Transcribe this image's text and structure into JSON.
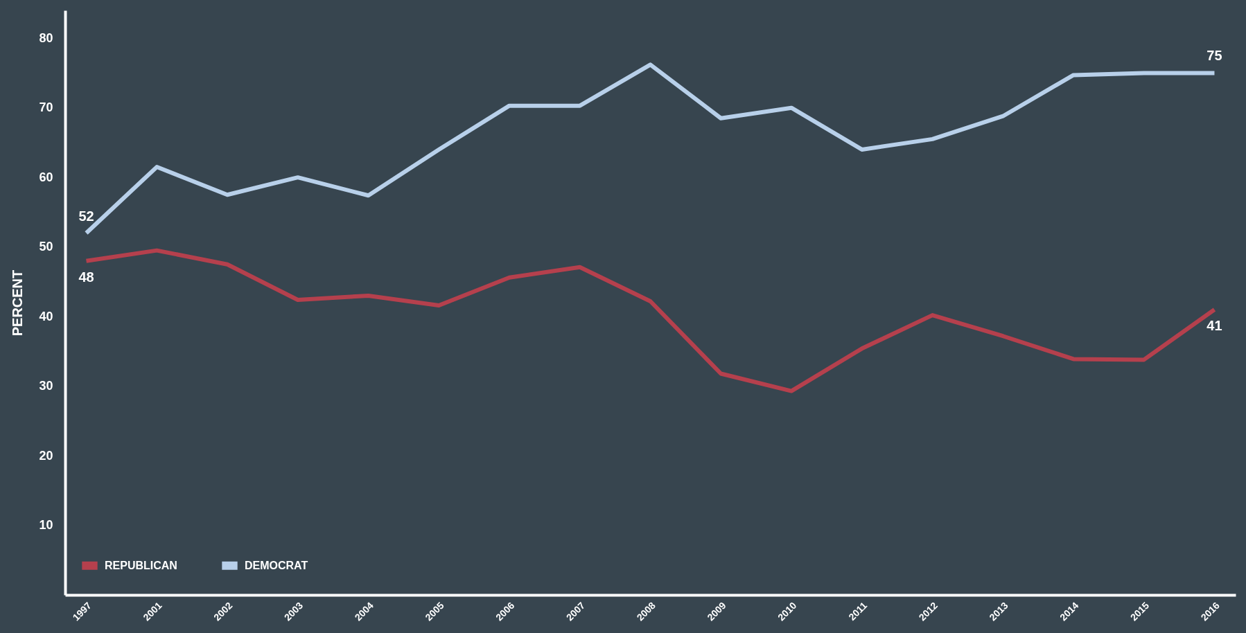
{
  "chart_data": {
    "type": "line",
    "ylabel": "PERCENT",
    "categories": [
      "1997",
      "2001",
      "2002",
      "2003",
      "2004",
      "2005",
      "2006",
      "2007",
      "2008",
      "2009",
      "2010",
      "2011",
      "2012",
      "2013",
      "2014",
      "2015",
      "2016"
    ],
    "series": [
      {
        "name": "REPUBLICAN",
        "color": "#b5404d",
        "values": [
          48,
          49.5,
          47.5,
          42.4,
          43,
          41.6,
          45.6,
          47.1,
          42.2,
          31.8,
          29.3,
          35.4,
          40.2,
          37.2,
          33.9,
          33.8,
          41
        ],
        "value_labels": [
          "48",
          null,
          null,
          null,
          null,
          null,
          null,
          null,
          null,
          null,
          null,
          null,
          null,
          null,
          null,
          null,
          "41"
        ]
      },
      {
        "name": "DEMOCRAT",
        "color": "#b8d0ea",
        "values": [
          52,
          61.5,
          57.5,
          60,
          57.4,
          64,
          70.3,
          70.3,
          76.2,
          68.5,
          70,
          64,
          65.5,
          68.8,
          74.7,
          75,
          75
        ],
        "value_labels": [
          "52",
          null,
          null,
          null,
          null,
          null,
          null,
          null,
          null,
          null,
          null,
          null,
          null,
          null,
          null,
          null,
          "75"
        ]
      }
    ],
    "ylim": [
      0,
      84
    ],
    "yticks": [
      10,
      20,
      30,
      40,
      50,
      60,
      70,
      80
    ],
    "grid": false,
    "legend": "bottom left",
    "line_style": "solid",
    "marker": "none"
  }
}
